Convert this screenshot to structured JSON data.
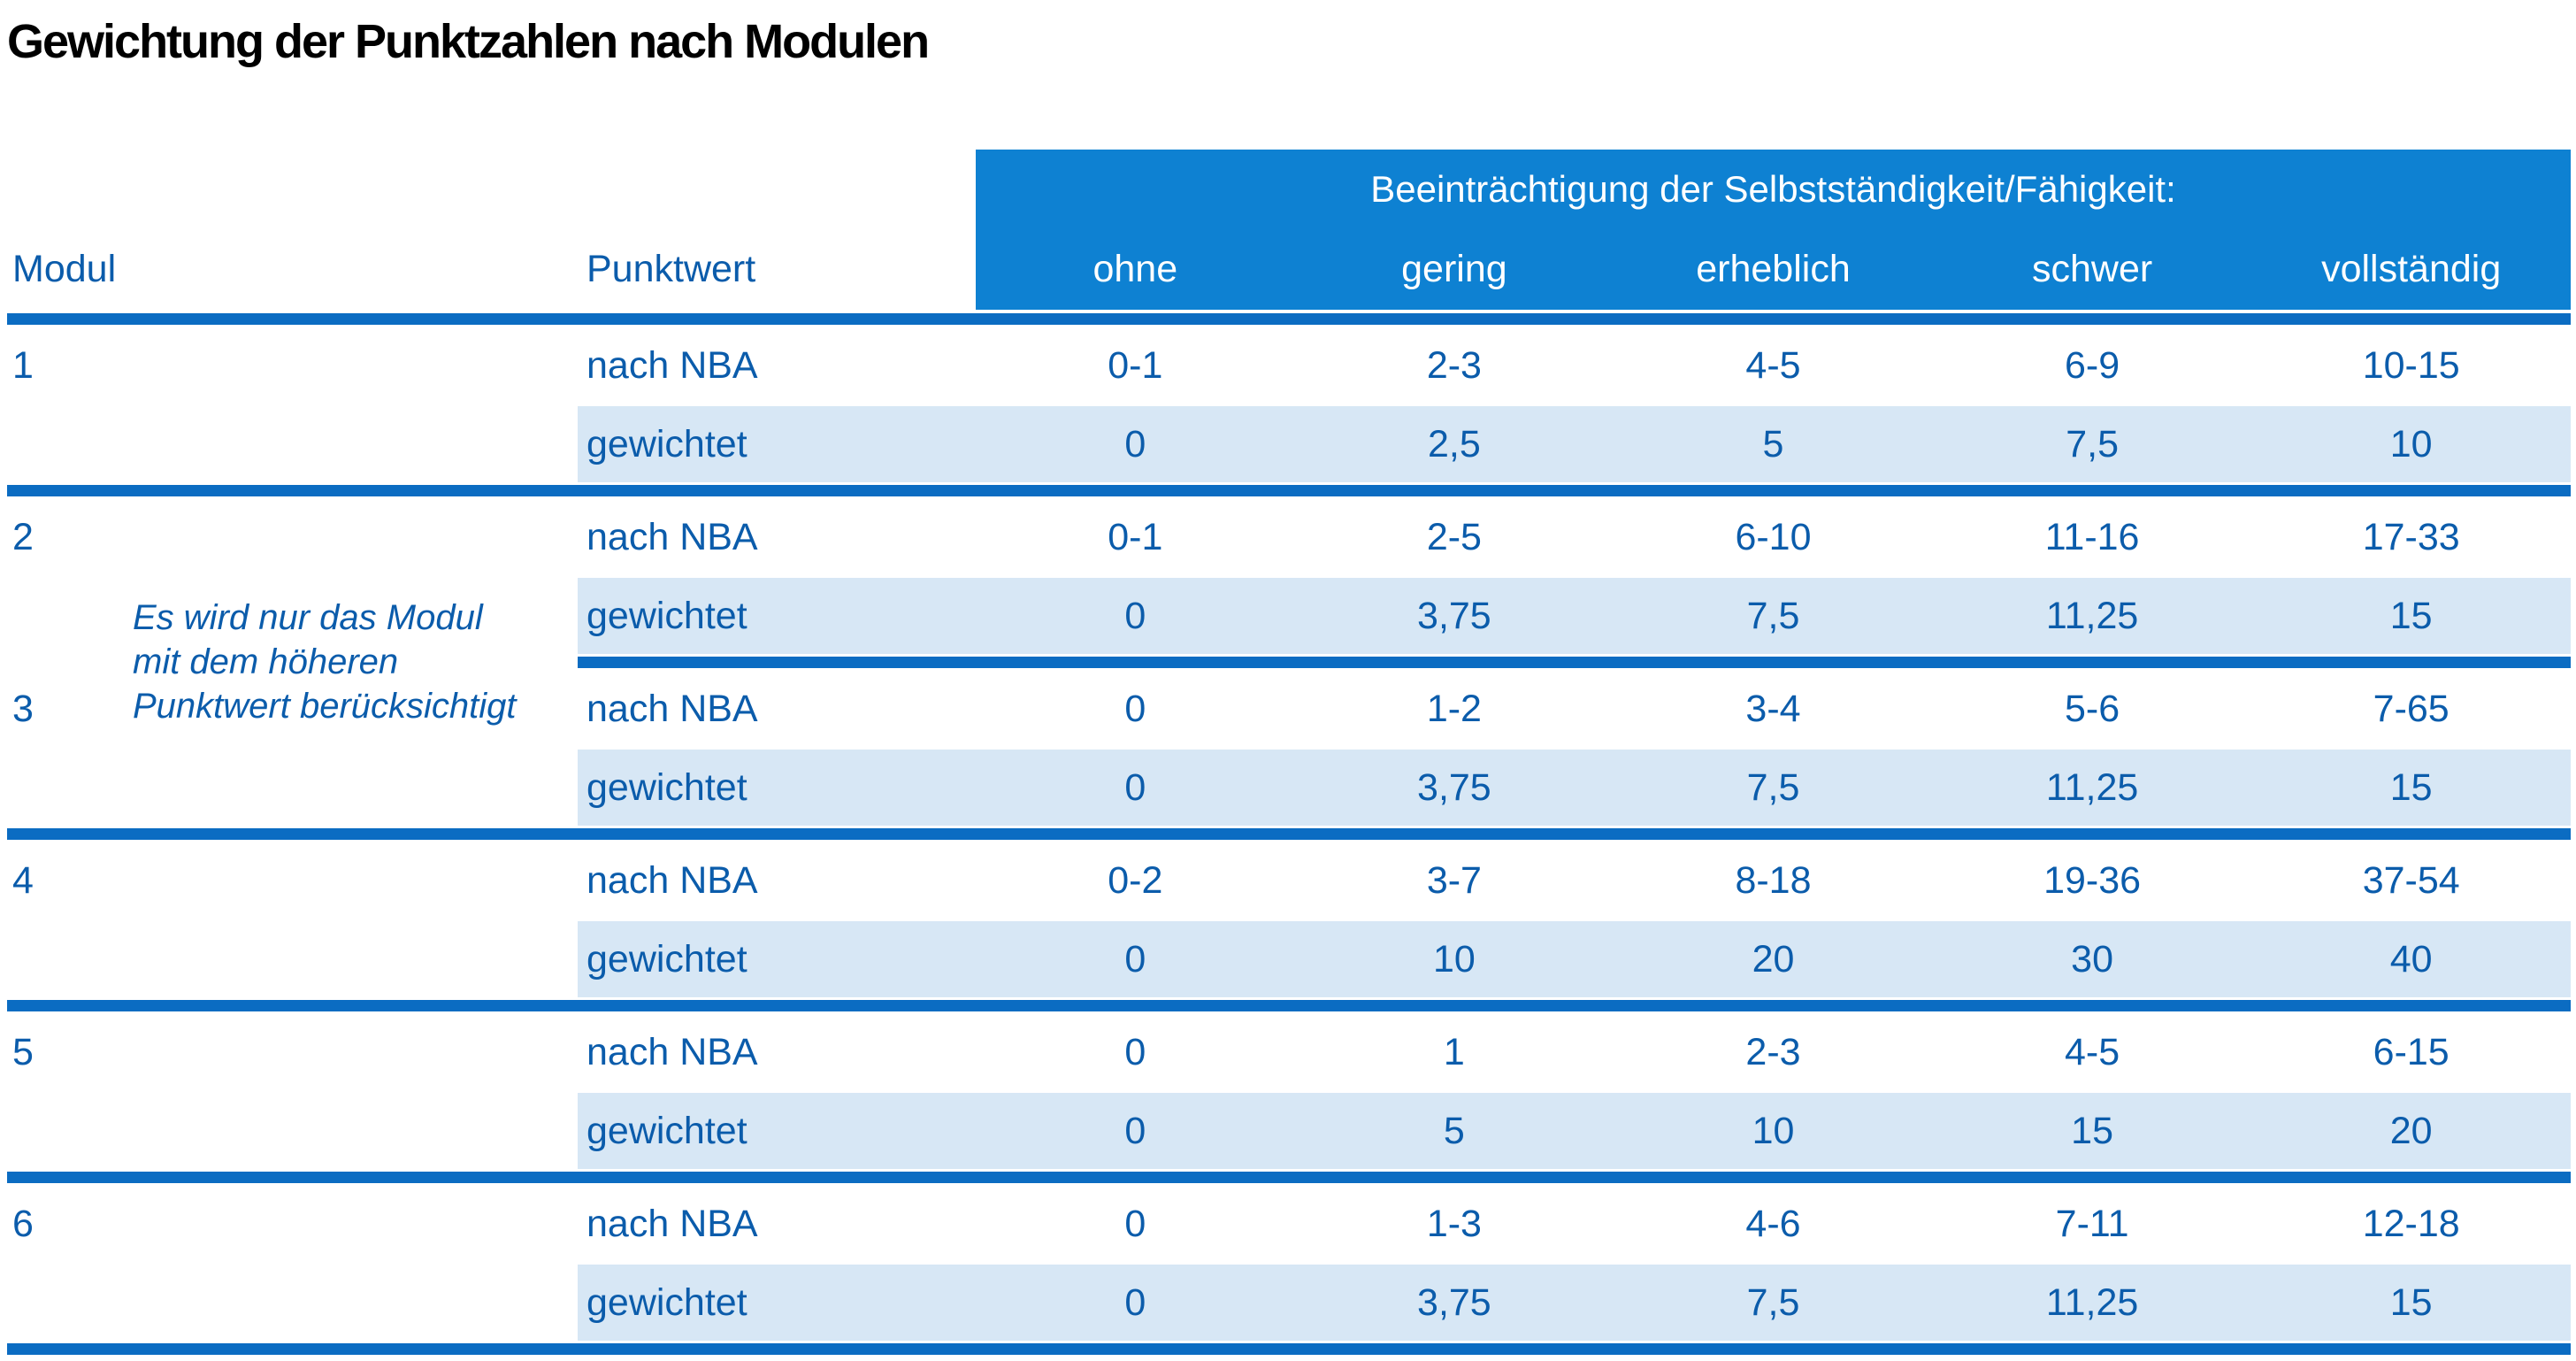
{
  "title": "Gewichtung der Punktzahlen nach Modulen",
  "colors": {
    "band": "#0e81d2",
    "line": "#0b6cc2",
    "text": "#0b5cab",
    "row_shade": "#d7e7f5",
    "title": "#000000"
  },
  "table": {
    "band_header": "Beeinträchtigung der Selbstständigkeit/Fähigkeit:",
    "col_headers": {
      "modul": "Modul",
      "punktwert": "Punktwert"
    },
    "severity_headers": [
      "ohne",
      "gering",
      "erheblich",
      "schwer",
      "vollständig"
    ],
    "row_labels": {
      "nba": "nach NBA",
      "weighted": "gewichtet"
    },
    "note": {
      "lines": [
        "Es wird nur das Modul",
        "mit dem höheren",
        "Punktwert berücksichtigt"
      ]
    },
    "modules": [
      {
        "id": "1",
        "nba": [
          "0-1",
          "2-3",
          "4-5",
          "6-9",
          "10-15"
        ],
        "weighted": [
          "0",
          "2,5",
          "5",
          "7,5",
          "10"
        ]
      },
      {
        "id": "2",
        "nba": [
          "0-1",
          "2-5",
          "6-10",
          "11-16",
          "17-33"
        ],
        "weighted": [
          "0",
          "3,75",
          "7,5",
          "11,25",
          "15"
        ]
      },
      {
        "id": "3",
        "nba": [
          "0",
          "1-2",
          "3-4",
          "5-6",
          "7-65"
        ],
        "weighted": [
          "0",
          "3,75",
          "7,5",
          "11,25",
          "15"
        ]
      },
      {
        "id": "4",
        "nba": [
          "0-2",
          "3-7",
          "8-18",
          "19-36",
          "37-54"
        ],
        "weighted": [
          "0",
          "10",
          "20",
          "30",
          "40"
        ]
      },
      {
        "id": "5",
        "nba": [
          "0",
          "1",
          "2-3",
          "4-5",
          "6-15"
        ],
        "weighted": [
          "0",
          "5",
          "10",
          "15",
          "20"
        ]
      },
      {
        "id": "6",
        "nba": [
          "0",
          "1-3",
          "4-6",
          "7-11",
          "12-18"
        ],
        "weighted": [
          "0",
          "3,75",
          "7,5",
          "11,25",
          "15"
        ]
      }
    ]
  }
}
